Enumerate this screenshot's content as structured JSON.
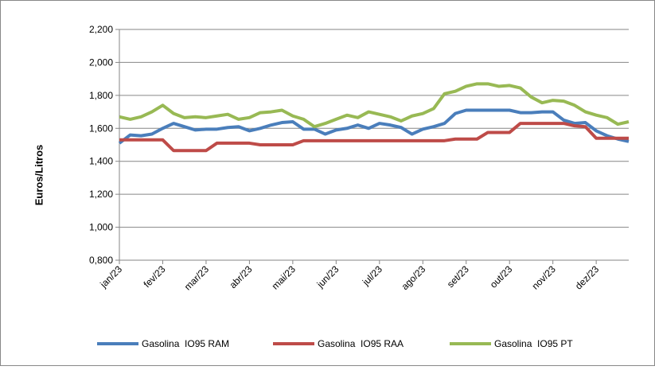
{
  "chart_data": {
    "type": "line",
    "y_label": "Euros/Litros",
    "categories": [
      "jan/23",
      null,
      null,
      null,
      "fev/23",
      null,
      null,
      null,
      "mar/23",
      null,
      null,
      null,
      "abr/23",
      null,
      null,
      null,
      "mai/23",
      null,
      null,
      null,
      "jun/23",
      null,
      null,
      null,
      "jul/23",
      null,
      null,
      null,
      "ago/23",
      null,
      null,
      null,
      "set/23",
      null,
      null,
      null,
      "out/23",
      null,
      null,
      null,
      "nov/23",
      null,
      null,
      null,
      "dez/23",
      null,
      null,
      null
    ],
    "series": [
      {
        "name": "Gasolina  IO95 RAM",
        "color": "#4a7ebb",
        "values": [
          1.51,
          1.56,
          1.555,
          1.565,
          1.6,
          1.63,
          1.61,
          1.59,
          1.595,
          1.595,
          1.605,
          1.61,
          1.585,
          1.6,
          1.62,
          1.635,
          1.64,
          1.595,
          1.595,
          1.565,
          1.59,
          1.6,
          1.62,
          1.6,
          1.63,
          1.62,
          1.605,
          1.565,
          1.595,
          1.61,
          1.63,
          1.69,
          1.71,
          1.71,
          1.71,
          1.71,
          1.71,
          1.695,
          1.695,
          1.7,
          1.7,
          1.65,
          1.63,
          1.635,
          1.585,
          1.555,
          1.535,
          1.52
        ]
      },
      {
        "name": "Gasolina  IO95 RAA",
        "color": "#be4b48",
        "values": [
          1.53,
          1.53,
          1.53,
          1.53,
          1.53,
          1.465,
          1.465,
          1.465,
          1.465,
          1.51,
          1.51,
          1.51,
          1.51,
          1.5,
          1.5,
          1.5,
          1.5,
          1.525,
          1.525,
          1.525,
          1.525,
          1.525,
          1.525,
          1.525,
          1.525,
          1.525,
          1.525,
          1.525,
          1.525,
          1.525,
          1.525,
          1.535,
          1.535,
          1.535,
          1.575,
          1.575,
          1.575,
          1.63,
          1.63,
          1.63,
          1.63,
          1.63,
          1.615,
          1.61,
          1.54,
          1.54,
          1.54,
          1.54
        ]
      },
      {
        "name": "Gasolina  IO95 PT",
        "color": "#98b954",
        "values": [
          1.67,
          1.655,
          1.67,
          1.7,
          1.74,
          1.69,
          1.665,
          1.67,
          1.665,
          1.675,
          1.685,
          1.655,
          1.665,
          1.695,
          1.7,
          1.71,
          1.675,
          1.655,
          1.61,
          1.63,
          1.655,
          1.68,
          1.665,
          1.7,
          1.685,
          1.67,
          1.645,
          1.675,
          1.69,
          1.72,
          1.81,
          1.825,
          1.855,
          1.87,
          1.87,
          1.855,
          1.86,
          1.845,
          1.79,
          1.755,
          1.77,
          1.765,
          1.74,
          1.7,
          1.68,
          1.665,
          1.625,
          1.64
        ]
      }
    ],
    "ylim": [
      0.8,
      2.2
    ],
    "yticks": [
      {
        "value": 0.8,
        "label": "0,800"
      },
      {
        "value": 1.0,
        "label": "1,000"
      },
      {
        "value": 1.2,
        "label": "1,200"
      },
      {
        "value": 1.4,
        "label": "1,400"
      },
      {
        "value": 1.6,
        "label": "1,600"
      },
      {
        "value": 1.8,
        "label": "1,800"
      },
      {
        "value": 2.0,
        "label": "2,000"
      },
      {
        "value": 2.2,
        "label": "2,200"
      }
    ],
    "grid": true,
    "legend": "bottom"
  }
}
